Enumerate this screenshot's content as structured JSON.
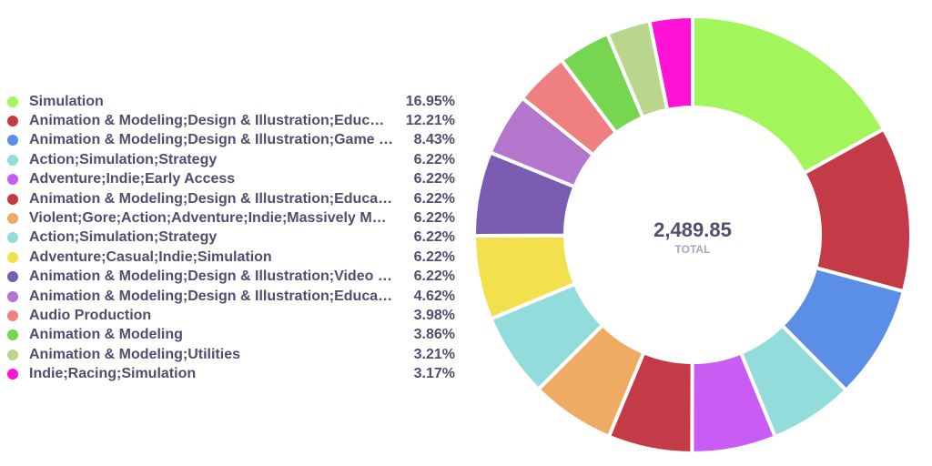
{
  "chart_data": {
    "type": "pie",
    "style": "donut",
    "center_value": "2,489.85",
    "center_label": "TOTAL",
    "categories": [
      "Simulation",
      "Animation & Modeling;Design & Illustration;Educ…",
      "Animation & Modeling;Design & Illustration;Game …",
      "Action;Simulation;Strategy",
      "Adventure;Indie;Early Access",
      "Animation & Modeling;Design & Illustration;Educa…",
      "Violent;Gore;Action;Adventure;Indie;Massively M…",
      "Action;Simulation;Strategy",
      "Adventure;Casual;Indie;Simulation",
      "Animation & Modeling;Design & Illustration;Video …",
      "Animation & Modeling;Design & Illustration;Educa…",
      "Audio Production",
      "Animation & Modeling",
      "Animation & Modeling;Utilities",
      "Indie;Racing;Simulation"
    ],
    "percent_labels": [
      "16.95%",
      "12.21%",
      "8.43%",
      "6.22%",
      "6.22%",
      "6.22%",
      "6.22%",
      "6.22%",
      "6.22%",
      "6.22%",
      "4.62%",
      "3.98%",
      "3.86%",
      "3.21%",
      "3.17%"
    ],
    "values": [
      16.95,
      12.21,
      8.43,
      6.22,
      6.22,
      6.22,
      6.22,
      6.22,
      6.22,
      6.22,
      4.62,
      3.98,
      3.86,
      3.21,
      3.17
    ],
    "colors": [
      "#a3f55c",
      "#c43b47",
      "#5b8ee6",
      "#92dcdc",
      "#c95cf2",
      "#c43b47",
      "#f0ab62",
      "#92dcdc",
      "#f2e14c",
      "#7a5db3",
      "#b376cc",
      "#f08080",
      "#76d64f",
      "#bad58c",
      "#ff12d4"
    ],
    "legend_position": "left"
  }
}
